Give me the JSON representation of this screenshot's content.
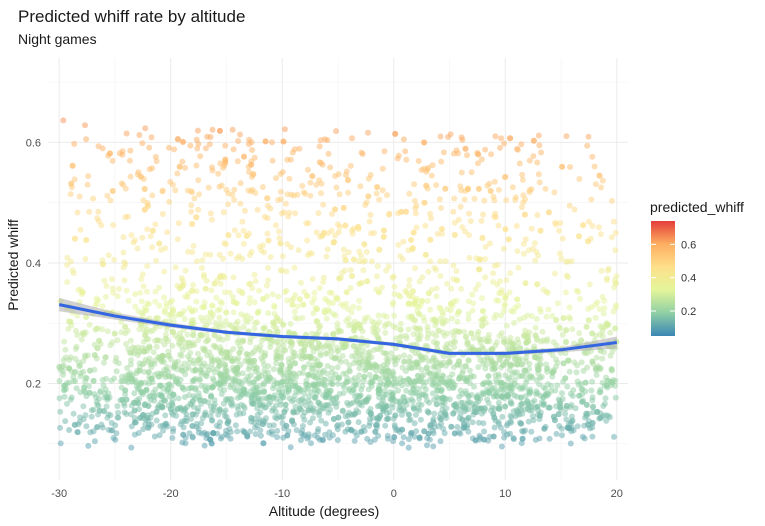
{
  "chart_data": {
    "type": "scatter",
    "title": "Predicted whiff rate by altitude",
    "subtitle": "Night games",
    "xlabel": "Altitude (degrees)",
    "ylabel": "Predicted whiff",
    "xlim": [
      -31,
      21
    ],
    "ylim": [
      0.04,
      0.74
    ],
    "x_ticks": [
      -30,
      -20,
      -10,
      0,
      10,
      20
    ],
    "x_tick_labels": [
      "-30",
      "-20",
      "-10",
      "0",
      "10",
      "20"
    ],
    "y_ticks": [
      0.2,
      0.4,
      0.6
    ],
    "y_tick_labels": [
      "0.2",
      "0.4",
      "0.6"
    ],
    "grid": true,
    "point_count_approx": 9000,
    "point_alpha": 0.5,
    "x_range": [
      -30,
      20
    ],
    "y_range_observed": [
      0.05,
      0.72
    ],
    "smooth_trend": {
      "x": [
        -30,
        -25,
        -20,
        -15,
        -10,
        -5,
        0,
        5,
        10,
        15,
        20
      ],
      "y": [
        0.331,
        0.312,
        0.297,
        0.285,
        0.278,
        0.274,
        0.265,
        0.25,
        0.25,
        0.256,
        0.268
      ],
      "ci_upper": [
        0.342,
        0.318,
        0.301,
        0.288,
        0.281,
        0.277,
        0.268,
        0.253,
        0.253,
        0.26,
        0.278
      ],
      "ci_lower": [
        0.32,
        0.306,
        0.293,
        0.282,
        0.275,
        0.271,
        0.262,
        0.247,
        0.247,
        0.252,
        0.258
      ],
      "color": "#3366e0"
    },
    "legend": {
      "title": "predicted_whiff",
      "placement": "right",
      "range": [
        0.05,
        0.74
      ],
      "breaks": [
        0.2,
        0.4,
        0.6
      ],
      "break_labels": [
        "0.2",
        "0.4",
        "0.6"
      ],
      "colors": [
        "#3b86b5",
        "#8fcfa4",
        "#e4f59a",
        "#fee08b",
        "#fdae61",
        "#e43e3a"
      ]
    }
  }
}
